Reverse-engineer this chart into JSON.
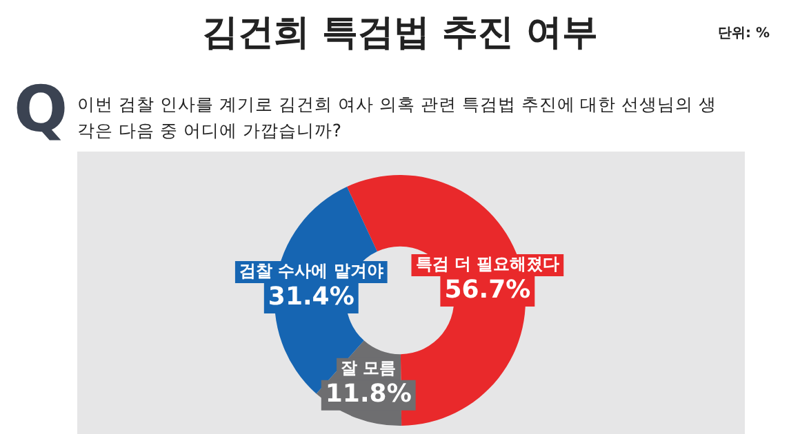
{
  "chart_data": {
    "type": "donut",
    "title": "김건희 특검법 추진 여부",
    "subtitle": "이번 검찰 인사를 계기로 김건희 여사 의혹 관련 특검법 추진에 대한 선생님의 생각은 다음 중 어디에 가깝습니까?",
    "annotations": [
      "단위: %",
      "Q"
    ],
    "categories": [
      "특검 더 필요해졌다",
      "잘 모름",
      "검찰 수사에 맡겨야"
    ],
    "values": [
      56.7,
      11.8,
      31.4
    ],
    "value_labels": [
      "56.7%",
      "11.8%",
      "31.4%"
    ],
    "colors": [
      "#e9292b",
      "#6e6e70",
      "#1665b2"
    ],
    "legend": false
  }
}
